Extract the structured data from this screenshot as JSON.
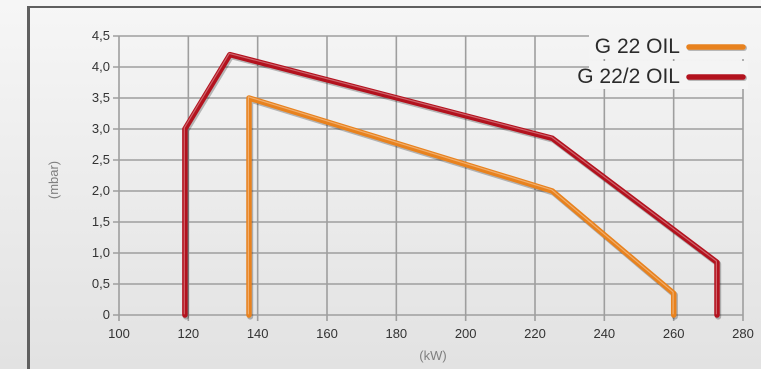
{
  "colors": {
    "background": "#ededed",
    "grid": "#9e9e9e",
    "frame": "#5f5f5f"
  },
  "chart_data": {
    "type": "line",
    "title": "",
    "xlabel": "(kW)",
    "ylabel": "(mbar)",
    "xlim": [
      100,
      280
    ],
    "ylim": [
      0,
      4.5
    ],
    "grid": true,
    "legend": "top-right",
    "x_ticks": [
      100,
      120,
      140,
      160,
      180,
      200,
      220,
      240,
      260,
      280
    ],
    "y_ticks": [
      "0",
      "0,5",
      "1,0",
      "1,5",
      "2,0",
      "2,5",
      "3,0",
      "3,5",
      "4,0",
      "4,5"
    ],
    "y_tick_values": [
      0,
      0.5,
      1.0,
      1.5,
      2.0,
      2.5,
      3.0,
      3.5,
      4.0,
      4.5
    ],
    "series": [
      {
        "name": "G 22 OIL",
        "color": "#e8821e",
        "points": [
          [
            137.5,
            0
          ],
          [
            137.5,
            3.5
          ],
          [
            225,
            2.0
          ],
          [
            260,
            0.35
          ],
          [
            260,
            0
          ]
        ]
      },
      {
        "name": "G 22/2 OIL",
        "color": "#b3121e",
        "points": [
          [
            119,
            0
          ],
          [
            119,
            3.0
          ],
          [
            132,
            4.2
          ],
          [
            225,
            2.85
          ],
          [
            272.5,
            0.85
          ],
          [
            272.5,
            0
          ]
        ]
      }
    ]
  }
}
